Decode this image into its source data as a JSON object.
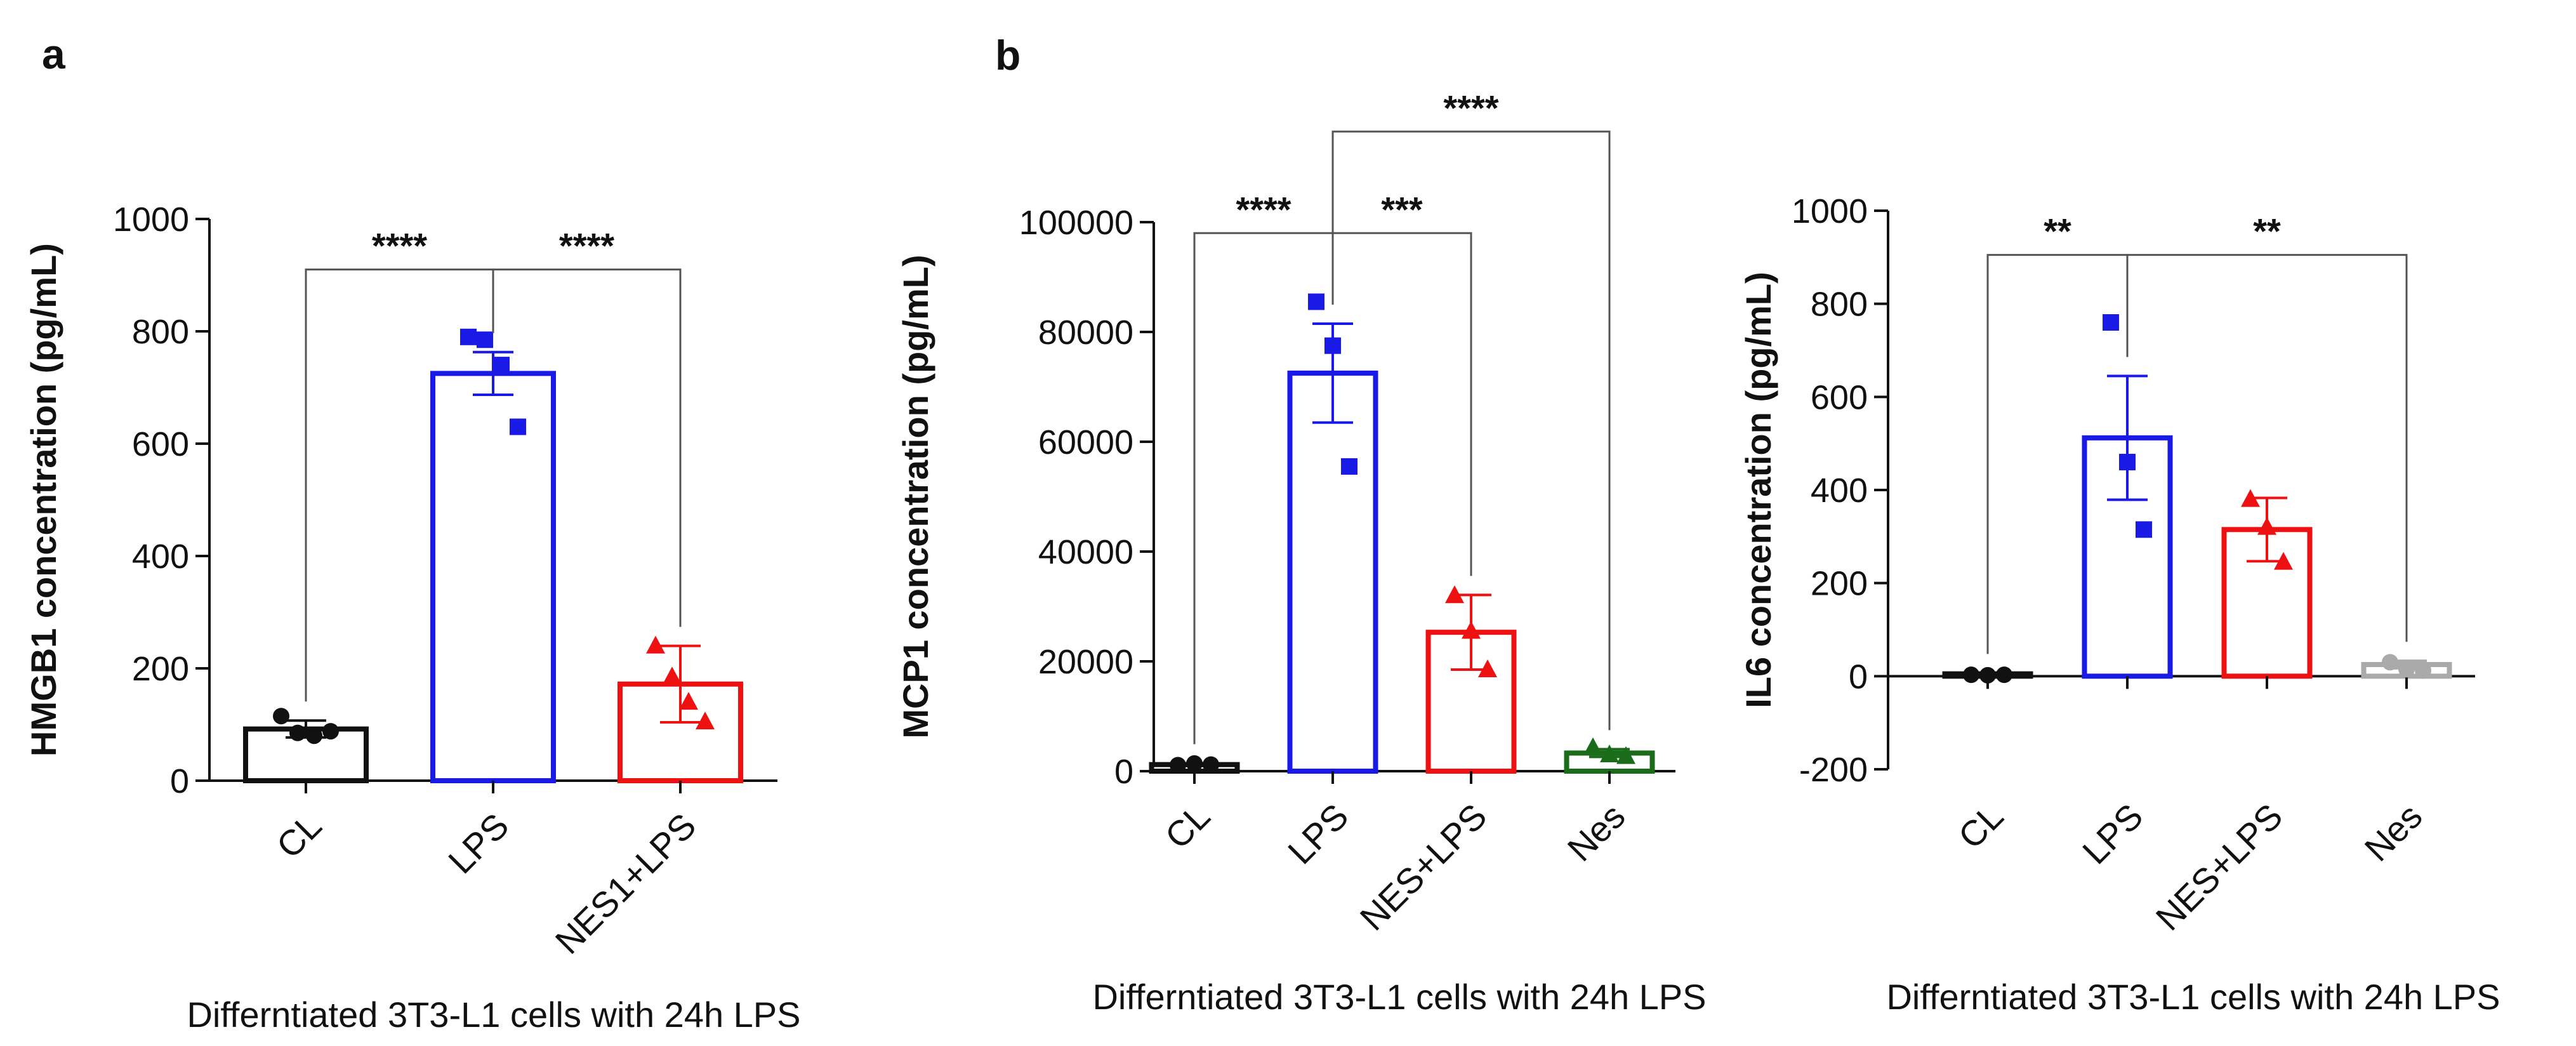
{
  "panels": [
    {
      "letter": "a"
    },
    {
      "letter": "b"
    }
  ],
  "chart_data": [
    {
      "type": "bar",
      "title": "",
      "xlabel": "Differntiated 3T3-L1 cells with 24h LPS",
      "ylabel": "HMGB1 concentration (pg/mL)",
      "ylim": [
        0,
        1000
      ],
      "yticks": [
        0,
        200,
        400,
        600,
        800,
        1000
      ],
      "categories": [
        "CL",
        "LPS",
        "NES1+LPS"
      ],
      "values": [
        92,
        725,
        172
      ],
      "sem": [
        15,
        38,
        68
      ],
      "colors": [
        "#111111",
        "#1a1ae6",
        "#ee1111"
      ],
      "markers": [
        "circle",
        "square",
        "triangle"
      ],
      "points": [
        [
          115,
          85,
          80,
          88
        ],
        [
          790,
          785,
          740,
          630
        ],
        [
          240,
          185,
          140,
          105
        ]
      ],
      "comparisons": [
        {
          "from": 0,
          "to": 1,
          "label": "****",
          "level": 910
        },
        {
          "from": 1,
          "to": 2,
          "label": "****",
          "level": 910
        }
      ]
    },
    {
      "type": "bar",
      "title": "",
      "xlabel": "Differntiated 3T3-L1 cells with 24h LPS",
      "ylabel": "MCP1 concentration (pg/mL)",
      "ylim": [
        0,
        100000
      ],
      "yticks": [
        0,
        20000,
        40000,
        60000,
        80000,
        100000
      ],
      "categories": [
        "CL",
        "LPS",
        "NES+LPS",
        "Nes"
      ],
      "values": [
        1200,
        72500,
        25300,
        3300
      ],
      "sem": [
        250,
        9000,
        6800,
        700
      ],
      "colors": [
        "#111111",
        "#1a1ae6",
        "#ee1111",
        "#1a6b1a"
      ],
      "markers": [
        "circle",
        "square",
        "triangle",
        "triangle"
      ],
      "points": [
        [
          1100,
          1400,
          1200
        ],
        [
          85500,
          77500,
          55500
        ],
        [
          32000,
          25500,
          18500
        ],
        [
          4300,
          3000,
          2700
        ]
      ],
      "comparisons": [
        {
          "from": 0,
          "to": 1,
          "label": "****",
          "level": 98000
        },
        {
          "from": 1,
          "to": 2,
          "label": "***",
          "level": 98000
        },
        {
          "from": 1,
          "to": 3,
          "label": "****",
          "level": 116500
        }
      ]
    },
    {
      "type": "bar",
      "title": "",
      "xlabel": "Differntiated 3T3-L1 cells with 24h LPS",
      "ylabel": "IL6 concentration (pg/mL)",
      "ylim": [
        -200,
        1000
      ],
      "yticks": [
        -200,
        0,
        200,
        400,
        600,
        800,
        1000
      ],
      "categories": [
        "CL",
        "LPS",
        "NES+LPS",
        "Nes"
      ],
      "values": [
        5,
        512,
        315,
        25
      ],
      "sem": [
        2,
        133,
        68,
        8
      ],
      "colors": [
        "#111111",
        "#1a1ae6",
        "#ee1111",
        "#aaaaaa"
      ],
      "markers": [
        "circle",
        "square",
        "triangle",
        "circle"
      ],
      "points": [
        [
          3,
          2,
          3
        ],
        [
          760,
          460,
          315
        ],
        [
          380,
          320,
          245
        ],
        [
          30,
          15,
          12
        ]
      ],
      "comparisons": [
        {
          "from": 0,
          "to": 1,
          "label": "**",
          "level": 905
        },
        {
          "from": 1,
          "to": 3,
          "label": "**",
          "level": 905
        }
      ]
    }
  ]
}
